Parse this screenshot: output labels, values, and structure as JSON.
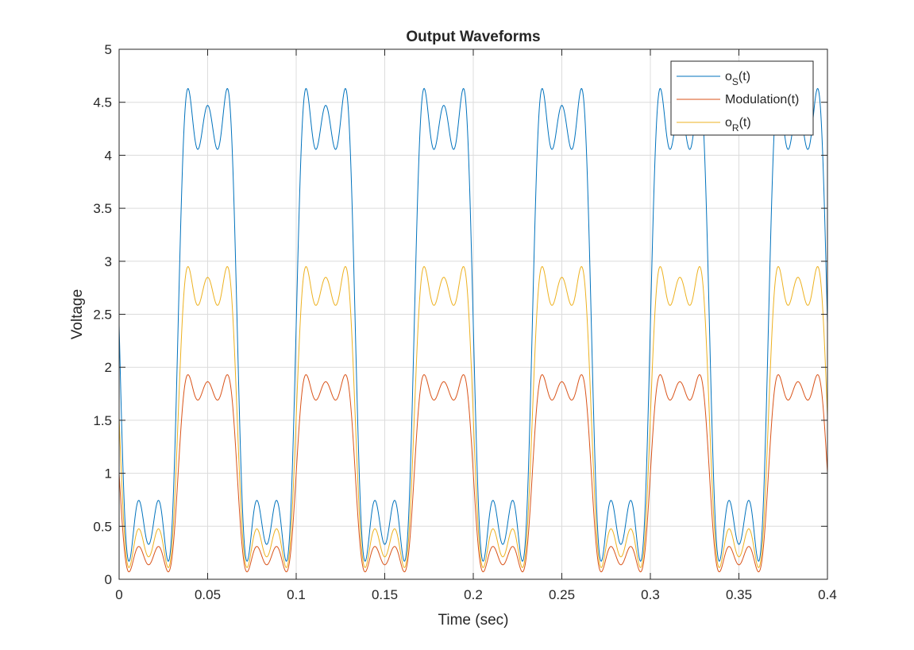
{
  "chart_data": {
    "type": "line",
    "title": "Output Waveforms",
    "xlabel": "Time (sec)",
    "ylabel": "Voltage",
    "xlim": [
      0,
      0.4
    ],
    "ylim": [
      0,
      5
    ],
    "xticks": [
      0,
      0.05,
      0.1,
      0.15,
      0.2,
      0.25,
      0.3,
      0.35,
      0.4
    ],
    "xtick_labels": [
      "0",
      "0.05",
      "0.1",
      "0.15",
      "0.2",
      "0.25",
      "0.3",
      "0.35",
      "0.4"
    ],
    "yticks": [
      0,
      0.5,
      1,
      1.5,
      2,
      2.5,
      3,
      3.5,
      4,
      4.5,
      5
    ],
    "ytick_labels": [
      "0",
      "0.5",
      "1",
      "1.5",
      "2",
      "2.5",
      "3",
      "3.5",
      "4",
      "4.5",
      "5"
    ],
    "grid": true,
    "legend_position": "top-right",
    "waveform": {
      "period": 0.06667,
      "shape": "square wave, fundamental + 3rd + 5th harmonics",
      "harmonic_amplitudes": [
        1,
        0.3333,
        0.2
      ]
    },
    "series": [
      {
        "name": "o_S(t)",
        "legend_main": "o",
        "legend_sub": "S",
        "legend_suffix": "(t)",
        "color": "#0072BD",
        "x": [
          0,
          0.005,
          0.0111,
          0.0167,
          0.0222,
          0.0278,
          0.0389,
          0.05,
          0.0611,
          0.0667
        ],
        "y": [
          2.4,
          0.17,
          0.73,
          0.33,
          0.73,
          0.17,
          4.63,
          4.48,
          4.63,
          2.4
        ]
      },
      {
        "name": "Modulation(t)",
        "legend_main": "Modulation(t)",
        "legend_sub": "",
        "legend_suffix": "",
        "color": "#D95319",
        "x": [
          0,
          0.005,
          0.0111,
          0.0167,
          0.0222,
          0.0278,
          0.0389,
          0.05,
          0.0611,
          0.0667
        ],
        "y": [
          1.0,
          0.07,
          0.31,
          0.14,
          0.31,
          0.07,
          1.93,
          1.87,
          1.93,
          1.0
        ]
      },
      {
        "name": "o_R(t)",
        "legend_main": "o",
        "legend_sub": "R",
        "legend_suffix": "(t)",
        "color": "#EDB120",
        "x": [
          0,
          0.005,
          0.0111,
          0.0167,
          0.0222,
          0.0278,
          0.0389,
          0.05,
          0.0611,
          0.0667
        ],
        "y": [
          1.53,
          0.11,
          0.47,
          0.21,
          0.47,
          0.11,
          2.95,
          2.85,
          2.95,
          1.53
        ]
      }
    ]
  }
}
